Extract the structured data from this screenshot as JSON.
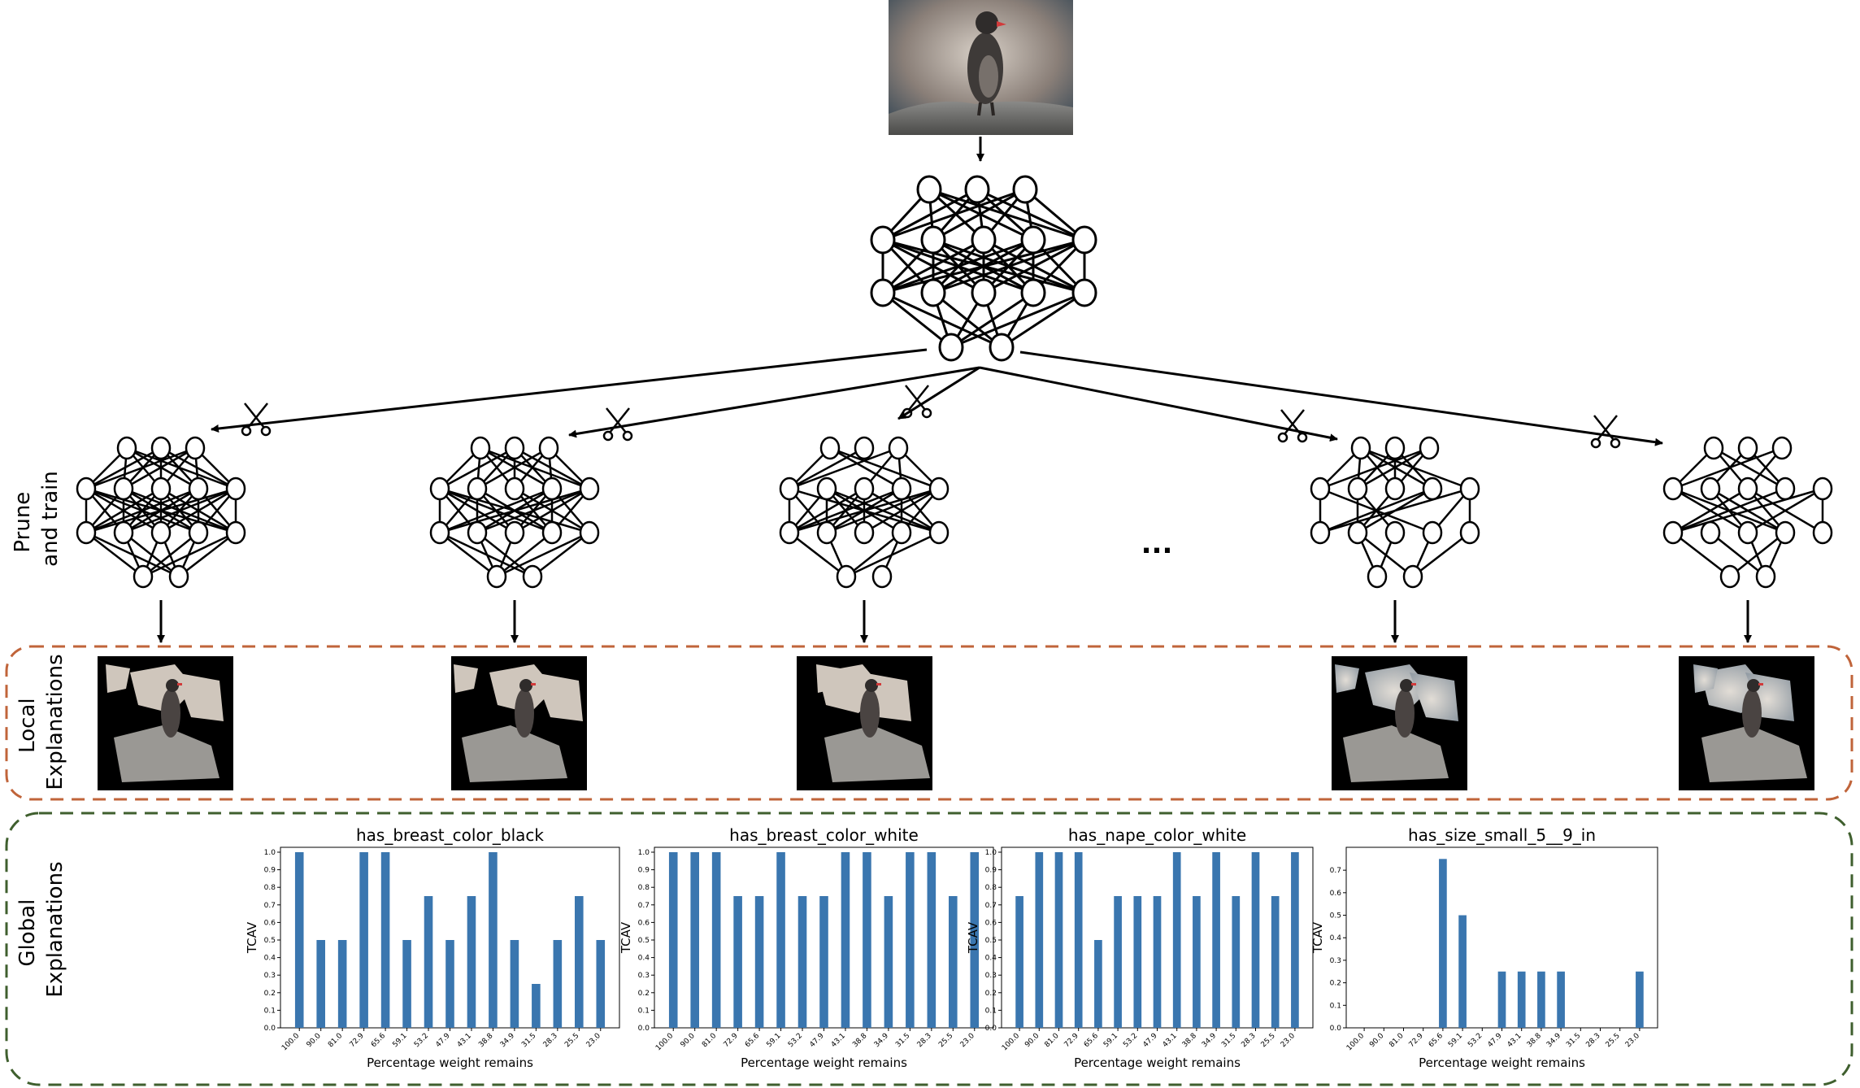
{
  "row_labels": {
    "prune": [
      "Prune",
      "and train"
    ],
    "local": [
      "Local",
      "Explanations"
    ],
    "global": [
      "Global",
      "Explanations"
    ]
  },
  "ellipsis": "...",
  "colors": {
    "bar": "#3a76af",
    "local_box": "#c0643a",
    "global_box": "#3f5f2e"
  },
  "chart_data": [
    {
      "type": "bar",
      "title": "has_breast_color_black",
      "xlabel": "Percentage weight remains",
      "ylabel": "TCAV",
      "categories": [
        "100.0",
        "90.0",
        "81.0",
        "72.9",
        "65.6",
        "59.1",
        "53.2",
        "47.9",
        "43.1",
        "38.8",
        "34.9",
        "31.5",
        "28.3",
        "25.5",
        "23.0"
      ],
      "values": [
        1.0,
        0.5,
        0.5,
        1.0,
        1.0,
        0.5,
        0.75,
        0.5,
        0.75,
        1.0,
        0.5,
        0.25,
        0.5,
        0.75,
        0.5
      ],
      "ylim": [
        0,
        1.0
      ],
      "yticks": [
        "0.0",
        "0.1",
        "0.2",
        "0.3",
        "0.4",
        "0.5",
        "0.6",
        "0.7",
        "0.8",
        "0.9",
        "1.0"
      ]
    },
    {
      "type": "bar",
      "title": "has_breast_color_white",
      "xlabel": "Percentage weight remains",
      "ylabel": "TCAV",
      "categories": [
        "100.0",
        "90.0",
        "81.0",
        "72.9",
        "65.6",
        "59.1",
        "53.2",
        "47.9",
        "43.1",
        "38.8",
        "34.9",
        "31.5",
        "28.3",
        "25.5",
        "23.0"
      ],
      "values": [
        1.0,
        1.0,
        1.0,
        0.75,
        0.75,
        1.0,
        0.75,
        0.75,
        1.0,
        1.0,
        0.75,
        1.0,
        1.0,
        0.75,
        1.0
      ],
      "ylim": [
        0,
        1.0
      ],
      "yticks": [
        "0.0",
        "0.1",
        "0.2",
        "0.3",
        "0.4",
        "0.5",
        "0.6",
        "0.7",
        "0.8",
        "0.9",
        "1.0"
      ]
    },
    {
      "type": "bar",
      "title": "has_nape_color_white",
      "xlabel": "Percentage weight remains",
      "ylabel": "TCAV",
      "categories": [
        "100.0",
        "90.0",
        "81.0",
        "72.9",
        "65.6",
        "59.1",
        "53.2",
        "47.9",
        "43.1",
        "38.8",
        "34.9",
        "31.5",
        "28.3",
        "25.5",
        "23.0"
      ],
      "values": [
        0.75,
        1.0,
        1.0,
        1.0,
        0.5,
        0.75,
        0.75,
        0.75,
        1.0,
        0.75,
        1.0,
        0.75,
        1.0,
        0.75,
        1.0
      ],
      "ylim": [
        0,
        1.0
      ],
      "yticks": [
        "0.0",
        "0.1",
        "0.2",
        "0.3",
        "0.4",
        "0.5",
        "0.6",
        "0.7",
        "0.8",
        "0.9",
        "1.0"
      ]
    },
    {
      "type": "bar",
      "title": "has_size_small_5__9_in",
      "xlabel": "Percentage weight remains",
      "ylabel": "TCAV",
      "categories": [
        "100.0",
        "90.0",
        "81.0",
        "72.9",
        "65.6",
        "59.1",
        "53.2",
        "47.9",
        "43.1",
        "38.8",
        "34.9",
        "31.5",
        "28.3",
        "25.5",
        "23.0"
      ],
      "values": [
        0,
        0,
        0,
        0,
        0.75,
        0.5,
        0,
        0.25,
        0.25,
        0.25,
        0.25,
        0,
        0,
        0,
        0.25
      ],
      "ylim": [
        0,
        0.78
      ],
      "yticks": [
        "0.0",
        "0.1",
        "0.2",
        "0.3",
        "0.4",
        "0.5",
        "0.6",
        "0.7"
      ]
    }
  ]
}
